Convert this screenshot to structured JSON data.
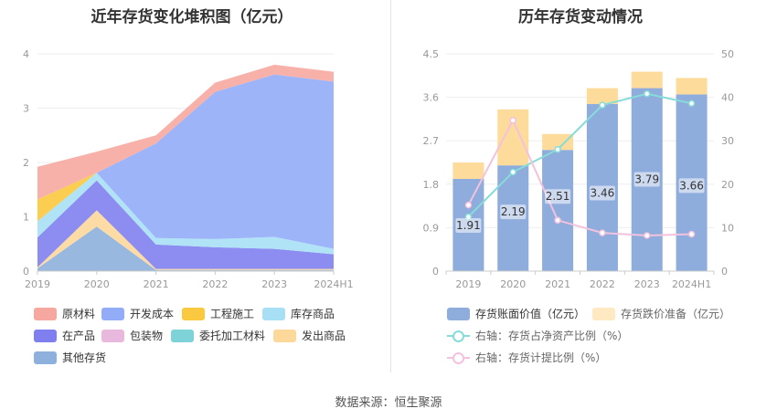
{
  "titles": {
    "left": "近年存货变化堆积图（亿元）",
    "right": "历年存货变动情况"
  },
  "source": "数据来源：恒生聚源",
  "chart_data": [
    {
      "type": "area",
      "stacked": true,
      "title": "近年存货变化堆积图（亿元）",
      "categories": [
        "2019",
        "2020",
        "2021",
        "2022",
        "2023",
        "2024H1"
      ],
      "ylim": [
        0,
        4
      ],
      "yticks": [
        "0",
        "1",
        "2",
        "3",
        "4"
      ],
      "series": [
        {
          "name": "其他存货",
          "color": "#8eb0dc",
          "values": [
            0.05,
            0.82,
            0.02,
            0.02,
            0.02,
            0.02
          ]
        },
        {
          "name": "发出商品",
          "color": "#fcd89a",
          "values": [
            0.02,
            0.3,
            0.02,
            0.02,
            0.02,
            0.02
          ]
        },
        {
          "name": "委托加工材料",
          "color": "#7dd3d8",
          "values": [
            0.0,
            0.0,
            0.0,
            0.0,
            0.0,
            0.0
          ]
        },
        {
          "name": "包装物",
          "color": "#e8b9dc",
          "values": [
            0.0,
            0.0,
            0.0,
            0.0,
            0.0,
            0.0
          ]
        },
        {
          "name": "在产品",
          "color": "#7f7ff0",
          "values": [
            0.55,
            0.55,
            0.45,
            0.4,
            0.37,
            0.27
          ]
        },
        {
          "name": "库存商品",
          "color": "#a7e0f5",
          "values": [
            0.3,
            0.14,
            0.12,
            0.15,
            0.22,
            0.1
          ]
        },
        {
          "name": "工程施工",
          "color": "#fbc93f",
          "values": [
            0.4,
            0.0,
            0.0,
            0.0,
            0.0,
            0.0
          ]
        },
        {
          "name": "开发成本",
          "color": "#93acf8",
          "values": [
            0.0,
            0.0,
            1.74,
            2.71,
            2.99,
            3.08
          ]
        },
        {
          "name": "原材料",
          "color": "#f6a8a0",
          "values": [
            0.6,
            0.39,
            0.15,
            0.17,
            0.18,
            0.18
          ]
        }
      ]
    },
    {
      "type": "bar",
      "title": "历年存货变动情况",
      "categories": [
        "2019",
        "2020",
        "2021",
        "2022",
        "2023",
        "2024H1"
      ],
      "ylim_left": [
        0,
        4.5
      ],
      "yticks_left": [
        "0",
        "0.9",
        "1.8",
        "2.7",
        "3.6",
        "4.5"
      ],
      "ylim_right": [
        0,
        50
      ],
      "yticks_right": [
        "0",
        "10",
        "20",
        "30",
        "40",
        "50"
      ],
      "series": [
        {
          "name": "存货账面价值（亿元）",
          "color": "#8eacdc",
          "type": "bar",
          "stack": "inv",
          "values": [
            1.91,
            2.19,
            2.51,
            3.46,
            3.79,
            3.66
          ],
          "labels": [
            "1.91",
            "2.19",
            "2.51",
            "3.46",
            "3.79",
            "3.66"
          ]
        },
        {
          "name": "存货跌价准备（亿元）",
          "color": "#fddb9b",
          "type": "bar",
          "stack": "inv",
          "values": [
            0.34,
            1.16,
            0.33,
            0.33,
            0.34,
            0.34
          ]
        },
        {
          "name": "右轴：存货占净资产比例（%）",
          "color": "#86dcd8",
          "type": "line",
          "axis": "right",
          "values": [
            12.5,
            22.8,
            28.0,
            38.2,
            40.8,
            38.6
          ]
        },
        {
          "name": "右轴：存货计提比例（%）",
          "color": "#f2c2de",
          "type": "line",
          "axis": "right",
          "values": [
            15.2,
            34.7,
            11.7,
            8.8,
            8.2,
            8.5
          ]
        }
      ]
    }
  ]
}
